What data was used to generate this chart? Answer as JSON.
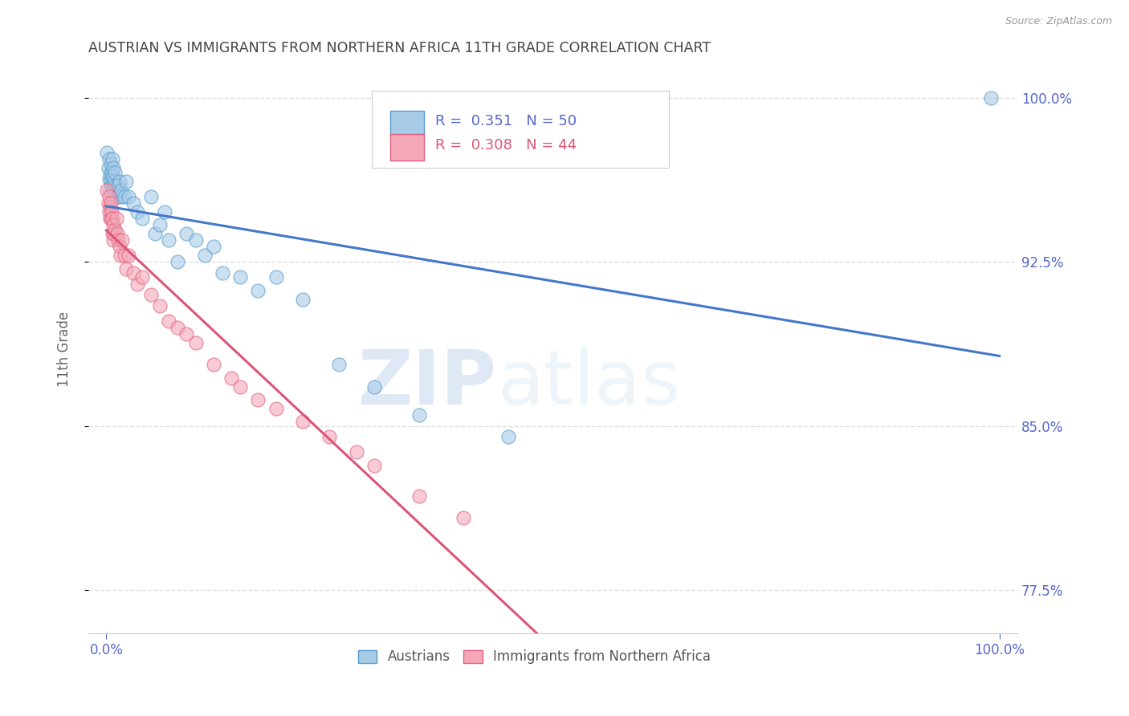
{
  "title": "AUSTRIAN VS IMMIGRANTS FROM NORTHERN AFRICA 11TH GRADE CORRELATION CHART",
  "source": "Source: ZipAtlas.com",
  "ylabel": "11th Grade",
  "xlim": [
    -0.02,
    1.02
  ],
  "ylim": [
    0.755,
    1.015
  ],
  "yticks": [
    0.775,
    0.85,
    0.925,
    1.0
  ],
  "ytick_labels": [
    "77.5%",
    "85.0%",
    "92.5%",
    "100.0%"
  ],
  "xticks": [
    0.0,
    1.0
  ],
  "xtick_labels": [
    "0.0%",
    "100.0%"
  ],
  "blue_R": 0.351,
  "blue_N": 50,
  "pink_R": 0.308,
  "pink_N": 44,
  "blue_color": "#a8cce8",
  "pink_color": "#f4a8b8",
  "blue_edge_color": "#5599cc",
  "pink_edge_color": "#e06080",
  "blue_line_color": "#4477cc",
  "pink_line_color": "#dd5577",
  "legend_label_blue": "Austrians",
  "legend_label_pink": "Immigrants from Northern Africa",
  "blue_x": [
    0.001,
    0.002,
    0.003,
    0.003,
    0.004,
    0.004,
    0.005,
    0.005,
    0.006,
    0.006,
    0.007,
    0.007,
    0.008,
    0.008,
    0.009,
    0.009,
    0.01,
    0.01,
    0.011,
    0.012,
    0.013,
    0.015,
    0.016,
    0.017,
    0.02,
    0.022,
    0.025,
    0.03,
    0.035,
    0.04,
    0.05,
    0.055,
    0.06,
    0.065,
    0.07,
    0.08,
    0.09,
    0.1,
    0.11,
    0.12,
    0.13,
    0.15,
    0.17,
    0.19,
    0.22,
    0.26,
    0.3,
    0.35,
    0.45,
    0.99
  ],
  "blue_y": [
    0.975,
    0.968,
    0.972,
    0.963,
    0.965,
    0.958,
    0.97,
    0.962,
    0.966,
    0.96,
    0.972,
    0.964,
    0.968,
    0.958,
    0.962,
    0.955,
    0.966,
    0.96,
    0.958,
    0.955,
    0.96,
    0.962,
    0.955,
    0.958,
    0.955,
    0.962,
    0.955,
    0.952,
    0.948,
    0.945,
    0.955,
    0.938,
    0.942,
    0.948,
    0.935,
    0.925,
    0.938,
    0.935,
    0.928,
    0.932,
    0.92,
    0.918,
    0.912,
    0.918,
    0.908,
    0.878,
    0.868,
    0.855,
    0.845,
    1.0
  ],
  "pink_x": [
    0.001,
    0.002,
    0.003,
    0.003,
    0.004,
    0.004,
    0.005,
    0.005,
    0.006,
    0.007,
    0.007,
    0.008,
    0.008,
    0.009,
    0.01,
    0.011,
    0.012,
    0.013,
    0.015,
    0.016,
    0.018,
    0.02,
    0.022,
    0.025,
    0.03,
    0.035,
    0.04,
    0.05,
    0.06,
    0.07,
    0.08,
    0.09,
    0.1,
    0.12,
    0.14,
    0.15,
    0.17,
    0.19,
    0.22,
    0.25,
    0.28,
    0.3,
    0.35,
    0.4
  ],
  "pink_y": [
    0.958,
    0.952,
    0.955,
    0.948,
    0.95,
    0.945,
    0.952,
    0.945,
    0.948,
    0.945,
    0.938,
    0.942,
    0.935,
    0.938,
    0.94,
    0.945,
    0.938,
    0.935,
    0.932,
    0.928,
    0.935,
    0.928,
    0.922,
    0.928,
    0.92,
    0.915,
    0.918,
    0.91,
    0.905,
    0.898,
    0.895,
    0.892,
    0.888,
    0.878,
    0.872,
    0.868,
    0.862,
    0.858,
    0.852,
    0.845,
    0.838,
    0.832,
    0.818,
    0.808
  ],
  "watermark_zip": "ZIP",
  "watermark_atlas": "atlas",
  "grid_color": "#dddddd",
  "background_color": "#ffffff",
  "title_color": "#444444",
  "axis_tick_color": "#5566cc",
  "source_color": "#999999"
}
